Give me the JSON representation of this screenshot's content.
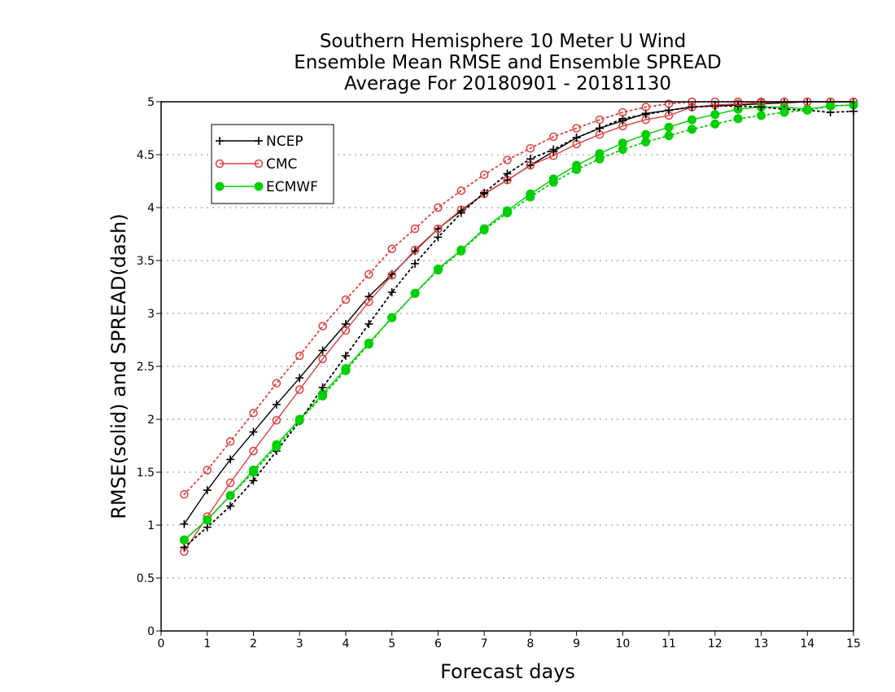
{
  "chart_data": {
    "type": "line",
    "title_lines": [
      "Southern Hemisphere 10 Meter U Wind",
      "Ensemble Mean RMSE and Ensemble SPREAD",
      "Average For 20180901 - 20181130"
    ],
    "xlabel": "Forecast days",
    "ylabel": "RMSE(solid) and SPREAD(dash)",
    "xlim": [
      0,
      15
    ],
    "ylim": [
      0,
      5
    ],
    "xticks": [
      "0",
      "1",
      "2",
      "3",
      "4",
      "5",
      "6",
      "7",
      "8",
      "9",
      "10",
      "11",
      "12",
      "13",
      "14",
      "15"
    ],
    "yticks": [
      "0",
      "0.5",
      "1",
      "1.5",
      "2",
      "2.5",
      "3",
      "3.5",
      "4",
      "4.5",
      "5"
    ],
    "grid": "horizontal dotted",
    "legend_position": "top-left",
    "x": [
      0.5,
      1,
      1.5,
      2,
      2.5,
      3,
      3.5,
      4,
      4.5,
      5,
      5.5,
      6,
      6.5,
      7,
      7.5,
      8,
      8.5,
      9,
      9.5,
      10,
      10.5,
      11,
      11.5,
      12,
      12.5,
      13,
      13.5,
      14,
      14.5,
      15
    ],
    "series": [
      {
        "name": "NCEP",
        "metric": "RMSE",
        "style": "solid",
        "marker": "plus",
        "color": "#000000",
        "values": [
          1.01,
          1.33,
          1.62,
          1.88,
          2.14,
          2.39,
          2.65,
          2.9,
          3.16,
          3.37,
          3.59,
          3.8,
          3.97,
          4.13,
          4.26,
          4.4,
          4.53,
          4.66,
          4.75,
          4.82,
          4.89,
          4.92,
          4.95,
          4.96,
          4.97,
          4.98,
          4.99,
          5.0,
          5.0,
          5.0
        ]
      },
      {
        "name": "CMC",
        "metric": "RMSE",
        "style": "solid",
        "marker": "open-circle",
        "color": "#e33c3c",
        "values": [
          0.75,
          1.08,
          1.4,
          1.7,
          1.99,
          2.28,
          2.57,
          2.84,
          3.11,
          3.36,
          3.6,
          3.8,
          3.98,
          4.13,
          4.26,
          4.4,
          4.49,
          4.6,
          4.69,
          4.77,
          4.83,
          4.87,
          4.95,
          4.97,
          4.98,
          4.99,
          5.0,
          5.0,
          5.0,
          5.0
        ]
      },
      {
        "name": "ECMWF",
        "metric": "RMSE",
        "style": "solid",
        "marker": "filled-circle",
        "color": "#00d000",
        "values": [
          0.86,
          1.05,
          1.28,
          1.52,
          1.76,
          2.0,
          2.24,
          2.48,
          2.72,
          2.96,
          3.19,
          3.42,
          3.6,
          3.8,
          3.97,
          4.13,
          4.27,
          4.4,
          4.51,
          4.61,
          4.69,
          4.76,
          4.83,
          4.88,
          4.93,
          4.95,
          4.95,
          4.93,
          4.96,
          4.97
        ]
      },
      {
        "name": "NCEP",
        "metric": "SPREAD",
        "style": "dotted",
        "marker": "plus",
        "color": "#000000",
        "values": [
          0.79,
          0.98,
          1.18,
          1.42,
          1.7,
          1.98,
          2.3,
          2.6,
          2.9,
          3.2,
          3.47,
          3.72,
          3.95,
          4.14,
          4.32,
          4.46,
          4.55,
          4.66,
          4.75,
          4.84,
          4.88,
          4.92,
          4.95,
          4.96,
          4.96,
          4.95,
          4.93,
          4.92,
          4.9,
          4.91
        ]
      },
      {
        "name": "CMC",
        "metric": "SPREAD",
        "style": "dotted",
        "marker": "open-circle",
        "color": "#e33c3c",
        "values": [
          1.29,
          1.52,
          1.79,
          2.06,
          2.34,
          2.6,
          2.88,
          3.13,
          3.37,
          3.61,
          3.8,
          4.0,
          4.16,
          4.31,
          4.45,
          4.56,
          4.67,
          4.75,
          4.83,
          4.9,
          4.95,
          4.98,
          5.0,
          5.0,
          5.0,
          5.0,
          5.0,
          5.0,
          5.0,
          5.0
        ]
      },
      {
        "name": "ECMWF",
        "metric": "SPREAD",
        "style": "dotted",
        "marker": "filled-circle",
        "color": "#00d000",
        "values": [
          0.86,
          1.05,
          1.28,
          1.5,
          1.74,
          1.99,
          2.22,
          2.46,
          2.71,
          2.96,
          3.19,
          3.41,
          3.59,
          3.79,
          3.95,
          4.1,
          4.24,
          4.36,
          4.46,
          4.55,
          4.62,
          4.68,
          4.74,
          4.79,
          4.84,
          4.87,
          4.9,
          4.92,
          4.96,
          4.97
        ]
      }
    ],
    "legend": [
      {
        "label": "NCEP",
        "marker": "plus",
        "color": "#000000"
      },
      {
        "label": "CMC",
        "marker": "open-circle",
        "color": "#e33c3c"
      },
      {
        "label": "ECMWF",
        "marker": "filled-circle",
        "color": "#00d000"
      }
    ]
  }
}
